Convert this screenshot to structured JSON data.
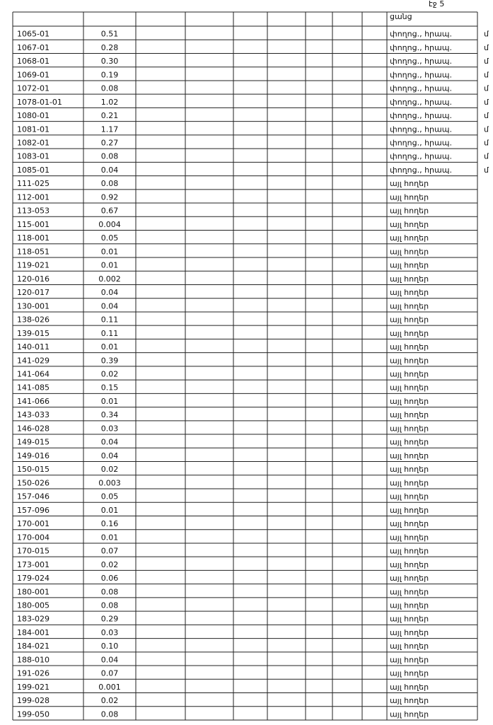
{
  "page_number": "էջ 5",
  "header": {
    "land_use": "ցանց"
  },
  "rows": [
    [
      "1065-01",
      "0.51",
      "փողոց., հրապ.",
      "մ"
    ],
    [
      "1067-01",
      "0.28",
      "փողոց., հրապ.",
      "մ"
    ],
    [
      "1068-01",
      "0.30",
      "փողոց., հրապ.",
      "մ"
    ],
    [
      "1069-01",
      "0.19",
      "փողոց., հրապ.",
      "մ"
    ],
    [
      "1072-01",
      "0.08",
      "փողոց., հրապ.",
      "մ"
    ],
    [
      "1078-01-01",
      "1.02",
      "փողոց., հրապ.",
      "մ"
    ],
    [
      "1080-01",
      "0.21",
      "փողոց., հրապ.",
      "մ"
    ],
    [
      "1081-01",
      "1.17",
      "փողոց., հրապ.",
      "մ"
    ],
    [
      "1082-01",
      "0.27",
      "փողոց., հրապ.",
      "մ"
    ],
    [
      "1083-01",
      "0.08",
      "փողոց., հրապ.",
      "մ"
    ],
    [
      "1085-01",
      "0.04",
      "փողոց., հրապ.",
      "մ"
    ],
    [
      "111-025",
      "0.08",
      "այլ հողեր"
    ],
    [
      "112-001",
      "0.92",
      "այլ հողեր"
    ],
    [
      "113-053",
      "0.67",
      "այլ հողեր"
    ],
    [
      "115-001",
      "0.004",
      "այլ հողեր"
    ],
    [
      "118-001",
      "0.05",
      "այլ հողեր"
    ],
    [
      "118-051",
      "0.01",
      "այլ հողեր"
    ],
    [
      "119-021",
      "0.01",
      "այլ հողեր"
    ],
    [
      "120-016",
      "0.002",
      "այլ հողեր"
    ],
    [
      "120-017",
      "0.04",
      "այլ հողեր"
    ],
    [
      "130-001",
      "0.04",
      "այլ հողեր"
    ],
    [
      "138-026",
      "0.11",
      "այլ հողեր"
    ],
    [
      "139-015",
      "0.11",
      "այլ հողեր"
    ],
    [
      "140-011",
      "0.01",
      "այլ հողեր"
    ],
    [
      "141-029",
      "0.39",
      "այլ հողեր"
    ],
    [
      "141-064",
      "0.02",
      "այլ հողեր"
    ],
    [
      "141-085",
      "0.15",
      "այլ հողեր"
    ],
    [
      "141-066",
      "0.01",
      "այլ հողեր"
    ],
    [
      "143-033",
      "0.34",
      "այլ հողեր"
    ],
    [
      "146-028",
      "0.03",
      "այլ հողեր"
    ],
    [
      "149-015",
      "0.04",
      "այլ հողեր"
    ],
    [
      "149-016",
      "0.04",
      "այլ հողեր"
    ],
    [
      "150-015",
      "0.02",
      "այլ հողեր"
    ],
    [
      "150-026",
      "0.003",
      "այլ հողեր"
    ],
    [
      "157-046",
      "0.05",
      "այլ հողեր"
    ],
    [
      "157-096",
      "0.01",
      "այլ հողեր"
    ],
    [
      "170-001",
      "0.16",
      "այլ հողեր"
    ],
    [
      "170-004",
      "0.01",
      "այլ հողեր"
    ],
    [
      "170-015",
      "0.07",
      "այլ հողեր"
    ],
    [
      "173-001",
      "0.02",
      "այլ հողեր"
    ],
    [
      "179-024",
      "0.06",
      "այլ հողեր"
    ],
    [
      "180-001",
      "0.08",
      "այլ հողեր"
    ],
    [
      "180-005",
      "0.08",
      "այլ հողեր"
    ],
    [
      "183-029",
      "0.29",
      "այլ հողեր"
    ],
    [
      "184-001",
      "0.03",
      "այլ հողեր"
    ],
    [
      "184-021",
      "0.10",
      "այլ հողեր"
    ],
    [
      "188-010",
      "0.04",
      "այլ հողեր"
    ],
    [
      "191-026",
      "0.07",
      "այլ հողեր"
    ],
    [
      "199-021",
      "0.001",
      "այլ հողեր"
    ],
    [
      "199-028",
      "0.02",
      "այլ հողեր"
    ],
    [
      "199-050",
      "0.08",
      "այլ հողեր"
    ]
  ]
}
